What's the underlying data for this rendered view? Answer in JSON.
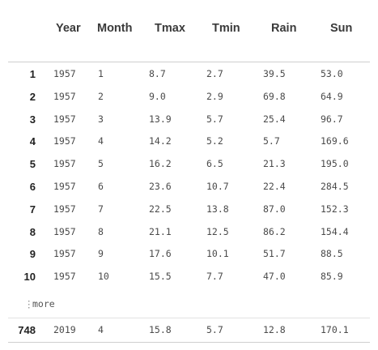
{
  "table": {
    "columns": [
      "Year",
      "Month",
      "Tmax",
      "Tmin",
      "Rain",
      "Sun"
    ],
    "rows": [
      {
        "index": "1",
        "cells": [
          "1957",
          "1",
          "8.7",
          "2.7",
          "39.5",
          "53.0"
        ]
      },
      {
        "index": "2",
        "cells": [
          "1957",
          "2",
          "9.0",
          "2.9",
          "69.8",
          "64.9"
        ]
      },
      {
        "index": "3",
        "cells": [
          "1957",
          "3",
          "13.9",
          "5.7",
          "25.4",
          "96.7"
        ]
      },
      {
        "index": "4",
        "cells": [
          "1957",
          "4",
          "14.2",
          "5.2",
          "5.7",
          "169.6"
        ]
      },
      {
        "index": "5",
        "cells": [
          "1957",
          "5",
          "16.2",
          "6.5",
          "21.3",
          "195.0"
        ]
      },
      {
        "index": "6",
        "cells": [
          "1957",
          "6",
          "23.6",
          "10.7",
          "22.4",
          "284.5"
        ]
      },
      {
        "index": "7",
        "cells": [
          "1957",
          "7",
          "22.5",
          "13.8",
          "87.0",
          "152.3"
        ]
      },
      {
        "index": "8",
        "cells": [
          "1957",
          "8",
          "21.1",
          "12.5",
          "86.2",
          "154.4"
        ]
      },
      {
        "index": "9",
        "cells": [
          "1957",
          "9",
          "17.6",
          "10.1",
          "51.7",
          "88.5"
        ]
      },
      {
        "index": "10",
        "cells": [
          "1957",
          "10",
          "15.5",
          "7.7",
          "47.0",
          "85.9"
        ]
      }
    ],
    "more_label": "more",
    "last_row": {
      "index": "748",
      "cells": [
        "2019",
        "4",
        "15.8",
        "5.7",
        "12.8",
        "170.1"
      ]
    }
  }
}
